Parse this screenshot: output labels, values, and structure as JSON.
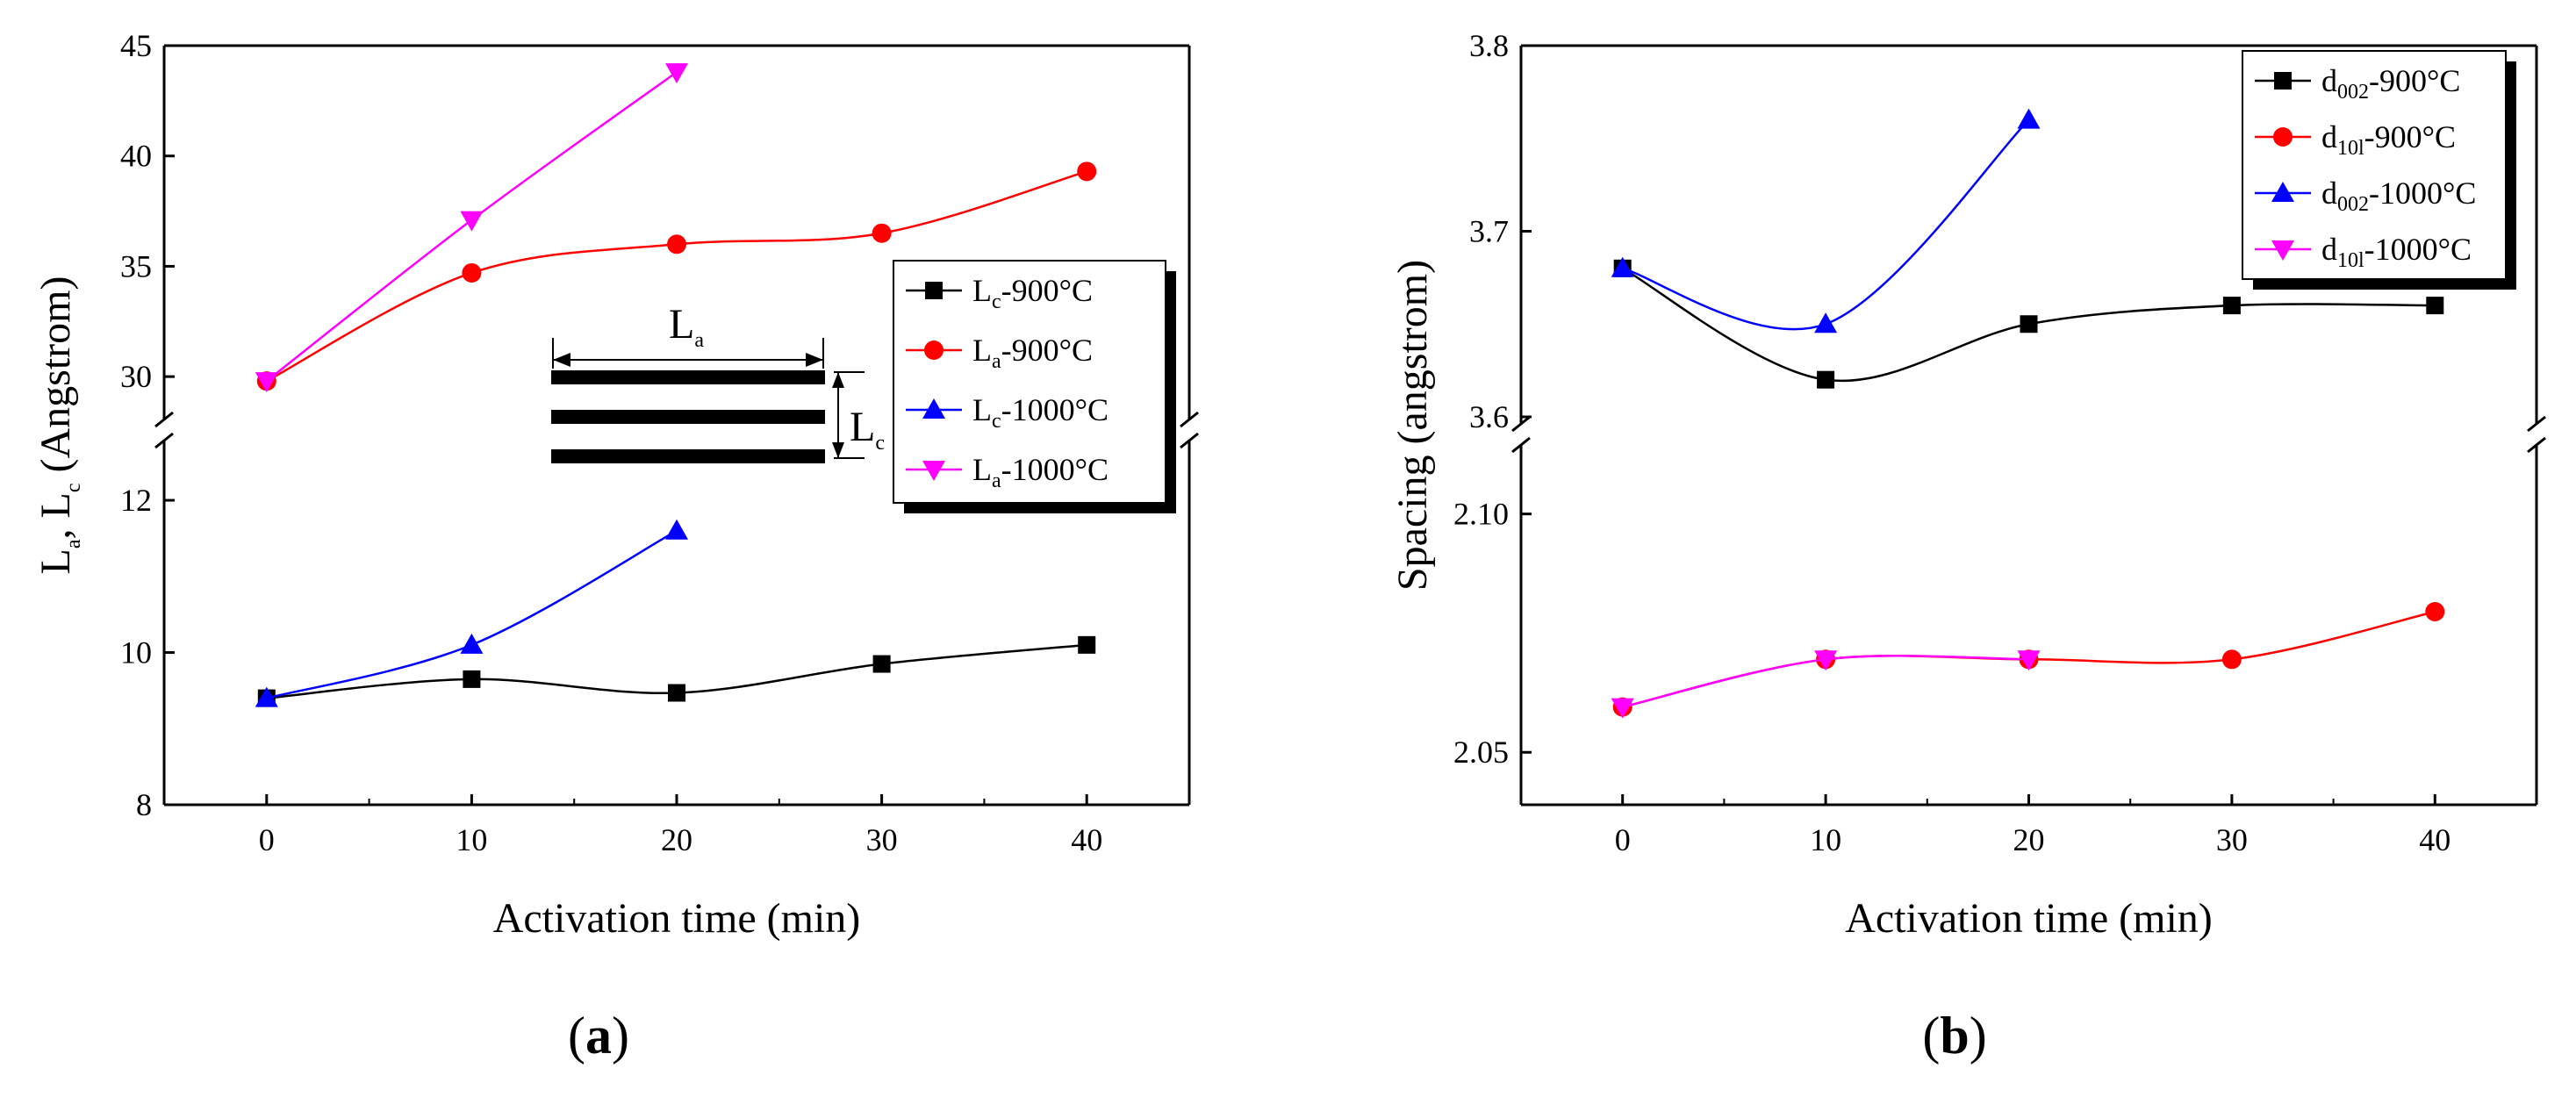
{
  "chart_data": [
    {
      "panel": "a",
      "type": "line",
      "xlabel": "Activation time (min)",
      "ylabel": "L_a, L_c (Angstrom)",
      "xlim": [
        -5,
        45
      ],
      "xticks": [
        0,
        10,
        20,
        30,
        40
      ],
      "broken_axis": {
        "upper": {
          "ylim": [
            27.5,
            45
          ],
          "ticks": [
            30,
            35,
            40,
            45
          ]
        },
        "lower": {
          "ylim": [
            8,
            12.9
          ],
          "ticks": [
            8,
            10,
            12
          ]
        }
      },
      "series": [
        {
          "name": "Lc-900°C",
          "label_main": "L",
          "label_sub": "c",
          "label_suffix": "-900°C",
          "color": "#000000",
          "marker": "square",
          "segment": "lower",
          "x": [
            0,
            10,
            20,
            30,
            40
          ],
          "y": [
            9.4,
            9.65,
            9.47,
            9.85,
            10.1
          ]
        },
        {
          "name": "La-900°C",
          "label_main": "L",
          "label_sub": "a",
          "label_suffix": "-900°C",
          "color": "#ff0000",
          "marker": "circle",
          "segment": "upper",
          "x": [
            0,
            10,
            20,
            30,
            40
          ],
          "y": [
            29.8,
            34.7,
            36.0,
            36.5,
            39.3
          ]
        },
        {
          "name": "Lc-1000°C",
          "label_main": "L",
          "label_sub": "c",
          "label_suffix": "-1000°C",
          "color": "#0000ff",
          "marker": "triangle-up",
          "segment": "lower",
          "x": [
            0,
            10,
            20
          ],
          "y": [
            9.4,
            10.1,
            11.6
          ]
        },
        {
          "name": "La-1000°C",
          "label_main": "L",
          "label_sub": "a",
          "label_suffix": "-1000°C",
          "color": "#ff00ff",
          "marker": "triangle-down",
          "segment": "upper",
          "x": [
            0,
            10,
            20
          ],
          "y": [
            29.8,
            37.1,
            43.8
          ]
        }
      ],
      "inset": {
        "la_main": "L",
        "la_sub": "a",
        "lc_main": "L",
        "lc_sub": "c"
      },
      "legend_position": "middle-right"
    },
    {
      "panel": "b",
      "type": "line",
      "xlabel": "Activation time (min)",
      "ylabel": "Spacing (angstrom)",
      "xlim": [
        -5,
        45
      ],
      "xticks": [
        0,
        10,
        20,
        30,
        40
      ],
      "broken_axis": {
        "upper": {
          "ylim": [
            3.6,
            3.8
          ],
          "ticks": [
            "3.6",
            "3.7",
            "3.8"
          ]
        },
        "lower": {
          "ylim": [
            2.039,
            2.113
          ],
          "ticks": [
            "2.05",
            "2.10"
          ]
        }
      },
      "series": [
        {
          "name": "d002-900°C",
          "label_main": "d",
          "label_sub": "002",
          "label_suffix": "-900°C",
          "color": "#000000",
          "marker": "square",
          "segment": "upper",
          "x": [
            0,
            10,
            20,
            30,
            40
          ],
          "y": [
            3.68,
            3.62,
            3.65,
            3.66,
            3.66
          ]
        },
        {
          "name": "d10l-900°C",
          "label_main": "d",
          "label_sub": "10l",
          "label_suffix": "-900°C",
          "color": "#ff0000",
          "marker": "circle",
          "segment": "lower",
          "x": [
            0,
            10,
            20,
            30,
            40
          ],
          "y": [
            2.0595,
            2.0695,
            2.0695,
            2.0695,
            2.0795
          ]
        },
        {
          "name": "d002-1000°C",
          "label_main": "d",
          "label_sub": "002",
          "label_suffix": "-1000°C",
          "color": "#0000ff",
          "marker": "triangle-up",
          "segment": "upper",
          "x": [
            0,
            10,
            20
          ],
          "y": [
            3.68,
            3.65,
            3.76
          ]
        },
        {
          "name": "d10l-1000°C",
          "label_main": "d",
          "label_sub": "10l",
          "label_suffix": "-1000°C",
          "color": "#ff00ff",
          "marker": "triangle-down",
          "segment": "lower",
          "x": [
            0,
            10,
            20
          ],
          "y": [
            2.0595,
            2.0695,
            2.0695
          ]
        }
      ],
      "legend_position": "top-right"
    }
  ],
  "panel_labels": {
    "a": "a",
    "b": "b"
  }
}
